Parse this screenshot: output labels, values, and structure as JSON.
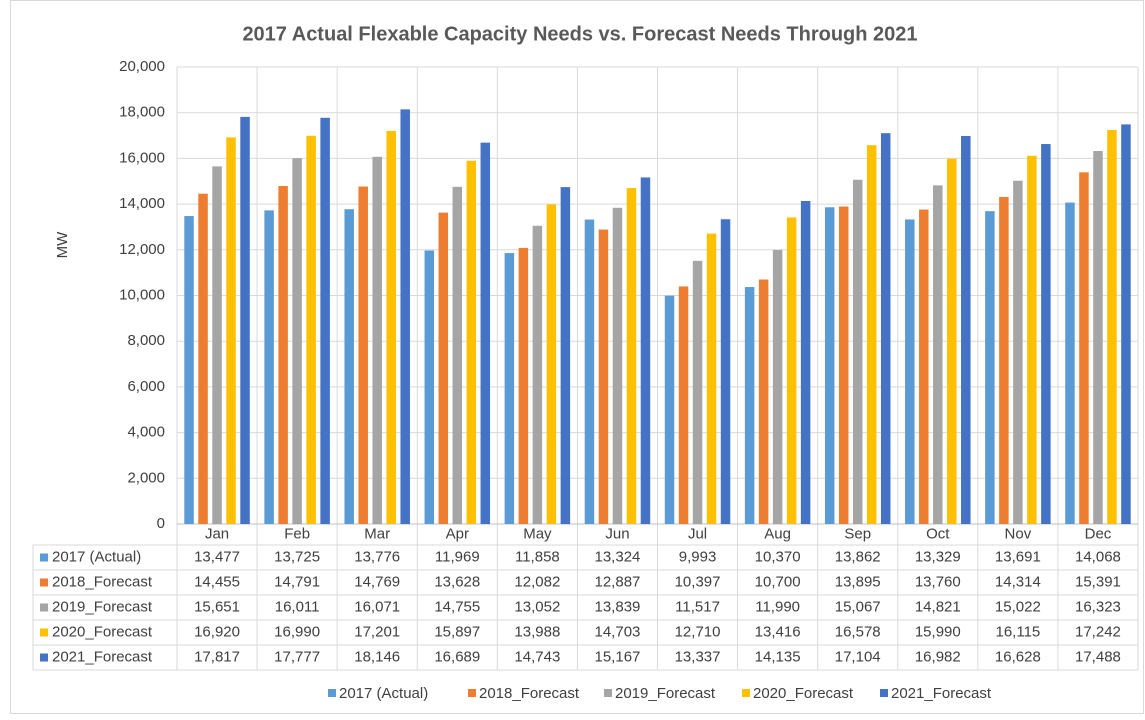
{
  "chart_data": {
    "type": "bar",
    "title": "2017 Actual Flexable Capacity Needs vs. Forecast Needs Through 2021",
    "y_label": "MW",
    "categories": [
      "Jan",
      "Feb",
      "Mar",
      "Apr",
      "May",
      "Jun",
      "Jul",
      "Aug",
      "Sep",
      "Oct",
      "Nov",
      "Dec"
    ],
    "series": [
      {
        "name": "2017 (Actual)",
        "color": "#5b9bd5",
        "values": [
          13477,
          13725,
          13776,
          11969,
          11858,
          13324,
          9993,
          10370,
          13862,
          13329,
          13691,
          14068
        ],
        "value_labels": [
          "13,477",
          "13,725",
          "13,776",
          "11,969",
          "11,858",
          "13,324",
          "9,993",
          "10,370",
          "13,862",
          "13,329",
          "13,691",
          "14,068"
        ]
      },
      {
        "name": "2018_Forecast",
        "color": "#ed7d31",
        "values": [
          14455,
          14791,
          14769,
          13628,
          12082,
          12887,
          10397,
          10700,
          13895,
          13760,
          14314,
          15391
        ],
        "value_labels": [
          "14,455",
          "14,791",
          "14,769",
          "13,628",
          "12,082",
          "12,887",
          "10,397",
          "10,700",
          "13,895",
          "13,760",
          "14,314",
          "15,391"
        ]
      },
      {
        "name": "2019_Forecast",
        "color": "#a5a5a5",
        "values": [
          15651,
          16011,
          16071,
          14755,
          13052,
          13839,
          11517,
          11990,
          15067,
          14821,
          15022,
          16323
        ],
        "value_labels": [
          "15,651",
          "16,011",
          "16,071",
          "14,755",
          "13,052",
          "13,839",
          "11,517",
          "11,990",
          "15,067",
          "14,821",
          "15,022",
          "16,323"
        ]
      },
      {
        "name": "2020_Forecast",
        "color": "#ffc000",
        "values": [
          16920,
          16990,
          17201,
          15897,
          13988,
          14703,
          12710,
          13416,
          16578,
          15990,
          16115,
          17242
        ],
        "value_labels": [
          "16,920",
          "16,990",
          "17,201",
          "15,897",
          "13,988",
          "14,703",
          "12,710",
          "13,416",
          "16,578",
          "15,990",
          "16,115",
          "17,242"
        ]
      },
      {
        "name": "2021_Forecast",
        "color": "#4472c4",
        "values": [
          17817,
          17777,
          18146,
          16689,
          14743,
          15167,
          13337,
          14135,
          17104,
          16982,
          16628,
          17488
        ],
        "value_labels": [
          "17,817",
          "17,777",
          "18,146",
          "16,689",
          "14,743",
          "15,167",
          "13,337",
          "14,135",
          "17,104",
          "16,982",
          "16,628",
          "17,488"
        ]
      }
    ],
    "ylim": [
      0,
      20000
    ],
    "yticks": [
      0,
      {
        "value": 2000,
        "label": "2,000"
      },
      {
        "value": 4000,
        "label": "4,000"
      },
      {
        "value": 6000,
        "label": "6,000"
      },
      {
        "value": 8000,
        "label": "8,000"
      },
      {
        "value": 10000,
        "label": "10,000"
      },
      {
        "value": 12000,
        "label": "12,000"
      },
      {
        "value": 14000,
        "label": "14,000"
      },
      {
        "value": 16000,
        "label": "16,000"
      },
      {
        "value": 18000,
        "label": "18,000"
      },
      {
        "value": 20000,
        "label": "20,000"
      }
    ],
    "grid": true
  }
}
